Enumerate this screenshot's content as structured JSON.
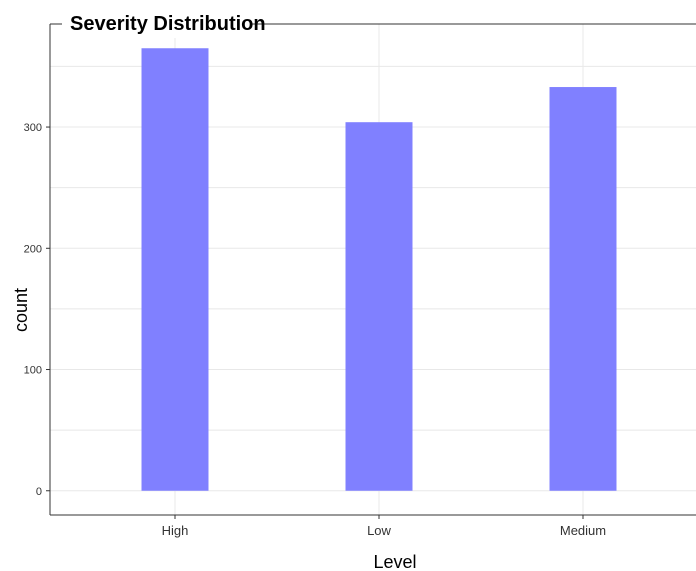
{
  "chart_data": {
    "type": "bar",
    "title": "Severity Distribution",
    "xlabel": "Level",
    "ylabel": "count",
    "categories": [
      "High",
      "Low",
      "Medium"
    ],
    "values": [
      365,
      304,
      333
    ],
    "ylim": [
      -20,
      385
    ],
    "yticks": [
      0,
      100,
      200,
      300
    ],
    "ytick_labels": [
      "0",
      "100",
      "200",
      "300"
    ],
    "grid": true,
    "bar_color": "#8080ff",
    "frame_color": "#333333",
    "grid_color": "#e8e8e8"
  }
}
